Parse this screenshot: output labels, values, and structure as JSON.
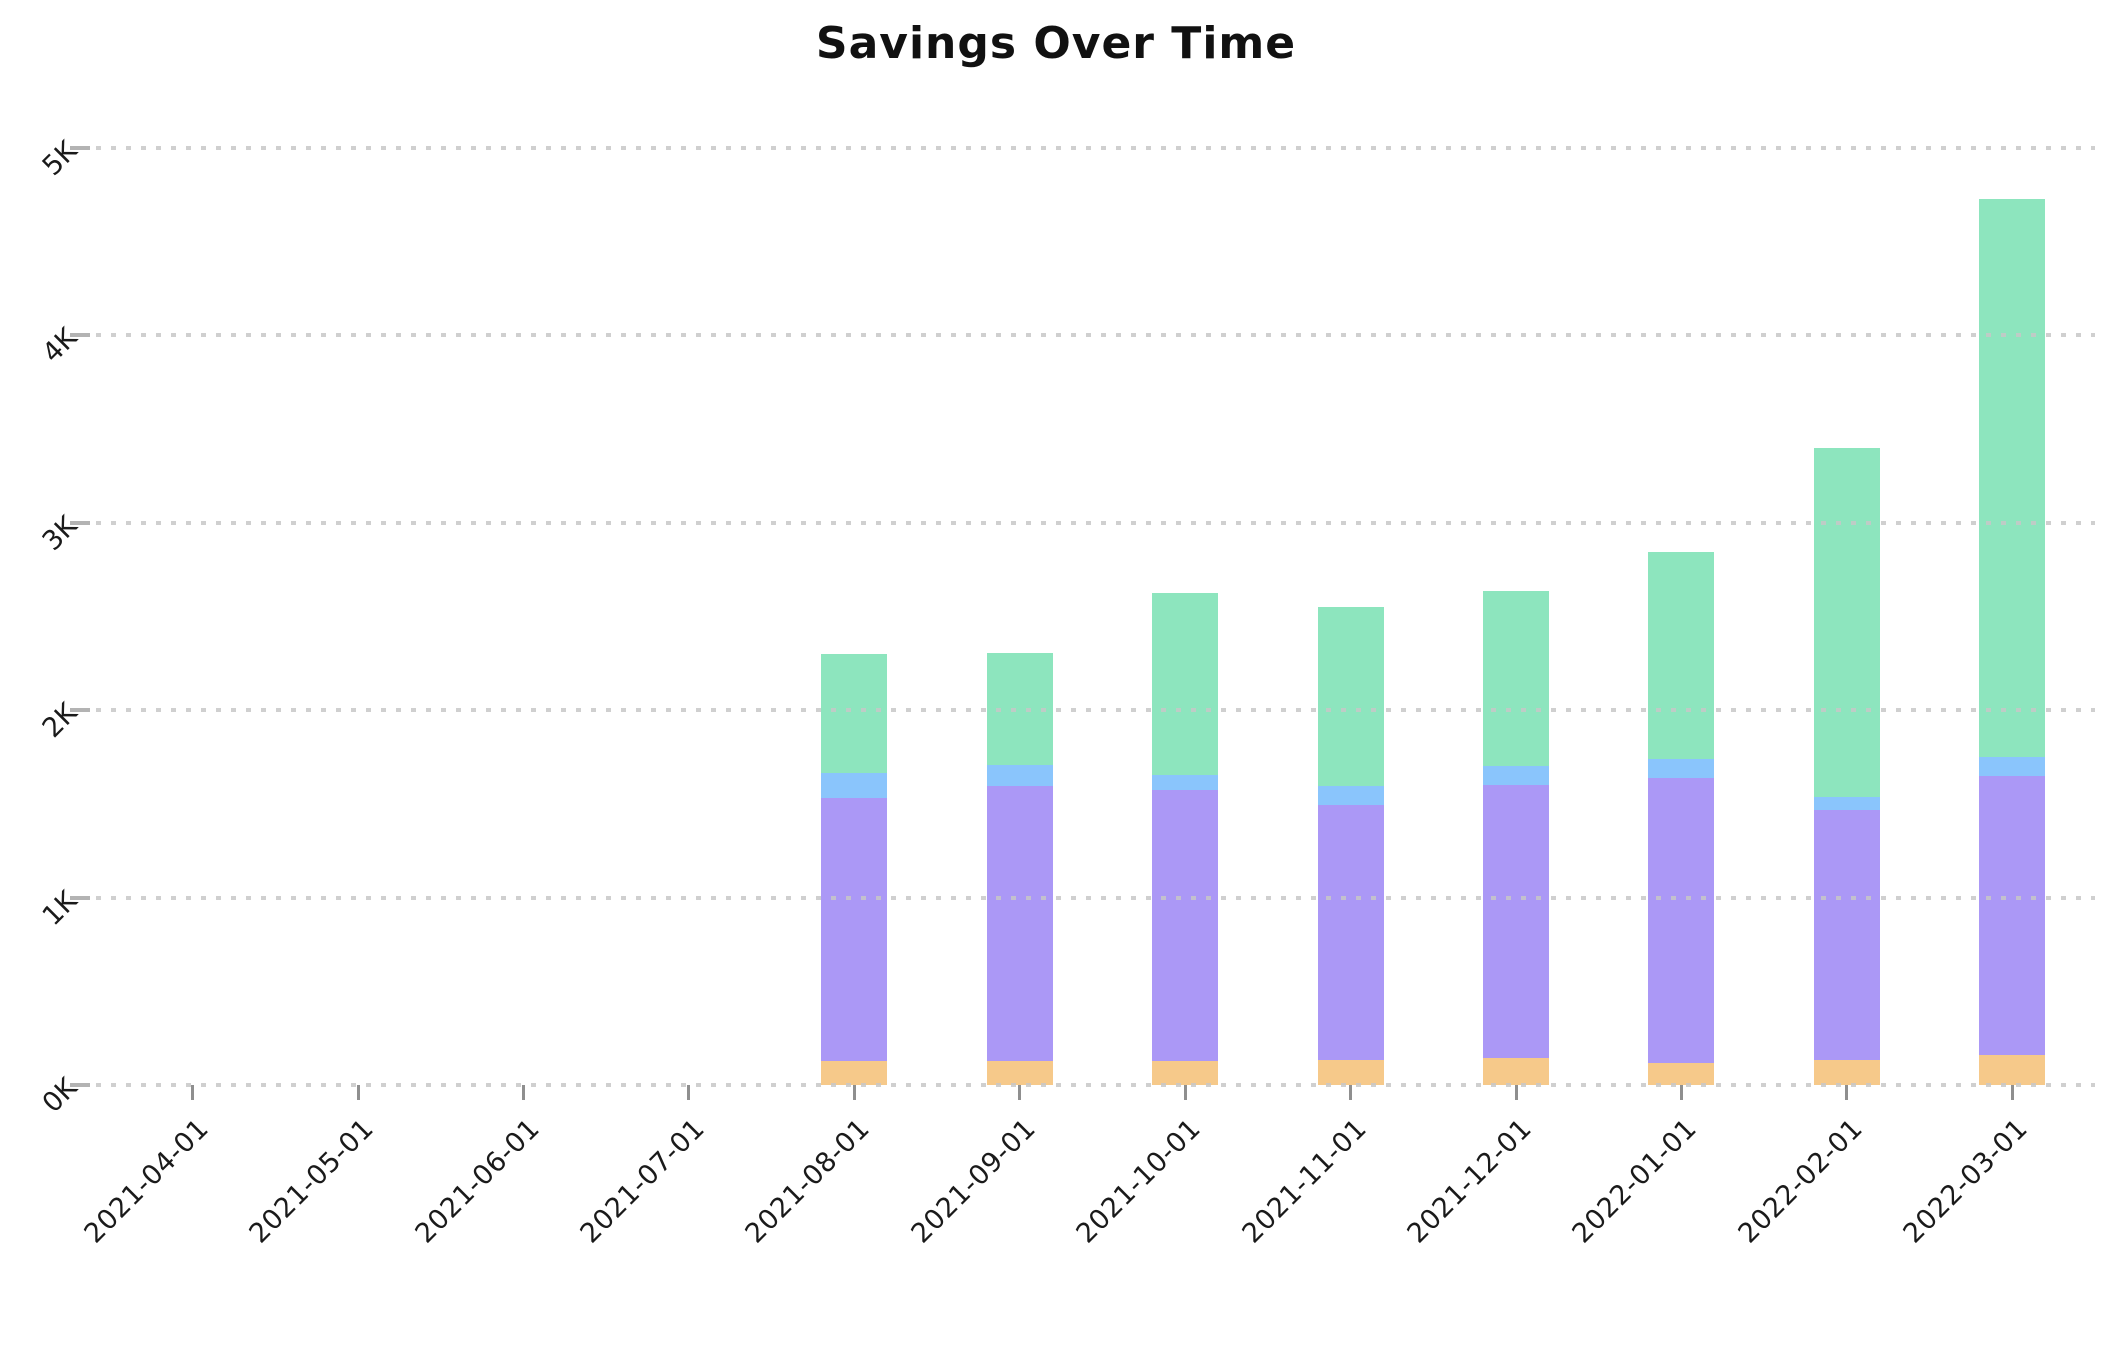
{
  "title": "Savings Over Time",
  "colors": {
    "background": "#ffffff",
    "gridline": "#c7c7c7",
    "tick": "#8f8f8f",
    "text": "#1a1a1a",
    "series_orange": "#f6c98a",
    "series_purple": "#ab98f6",
    "series_blue": "#8ac5fc",
    "series_green": "#8de5be"
  },
  "chart_data": {
    "type": "bar",
    "stacked": true,
    "title": "Savings Over Time",
    "xlabel": "",
    "ylabel": "",
    "categories": [
      "2021-04-01",
      "2021-05-01",
      "2021-06-01",
      "2021-07-01",
      "2021-08-01",
      "2021-09-01",
      "2021-10-01",
      "2021-11-01",
      "2021-12-01",
      "2022-01-01",
      "2022-02-01",
      "2022-03-01"
    ],
    "series": [
      {
        "name": "orange",
        "color": "#f6c98a",
        "values": [
          0,
          0,
          0,
          0,
          130,
          130,
          130,
          135,
          145,
          120,
          135,
          160
        ]
      },
      {
        "name": "purple",
        "color": "#ab98f6",
        "values": [
          0,
          0,
          0,
          0,
          1400,
          1465,
          1445,
          1360,
          1455,
          1520,
          1330,
          1490
        ]
      },
      {
        "name": "blue",
        "color": "#8ac5fc",
        "values": [
          0,
          0,
          0,
          0,
          135,
          110,
          80,
          100,
          100,
          100,
          70,
          100
        ]
      },
      {
        "name": "green",
        "color": "#8de5be",
        "values": [
          0,
          0,
          0,
          0,
          635,
          600,
          970,
          955,
          935,
          1105,
          1865,
          2975
        ]
      }
    ],
    "stack_order_bottom_to_top": [
      "orange",
      "purple",
      "blue",
      "green"
    ],
    "totals": [
      0,
      0,
      0,
      0,
      2300,
      2305,
      2625,
      2550,
      2635,
      2845,
      3400,
      4725
    ],
    "y_ticks": [
      "0K",
      "1K",
      "2K",
      "3K",
      "4K",
      "5K"
    ],
    "y_tick_values": [
      0,
      1000,
      2000,
      3000,
      4000,
      5000
    ],
    "ylim": [
      0,
      5000
    ],
    "grid": "horizontal dotted",
    "legend": "none",
    "x_label_rotation_deg": 45,
    "y_label_rotation_deg": 45
  }
}
